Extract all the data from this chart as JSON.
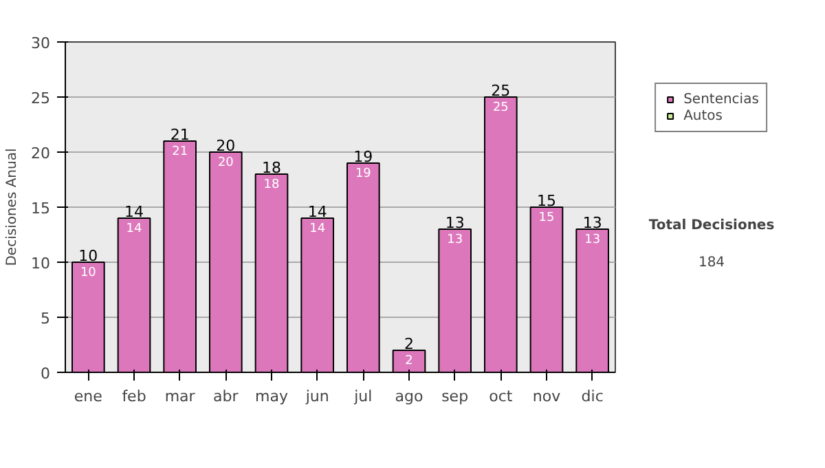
{
  "chart_data": {
    "type": "bar",
    "ylabel": "Decisiones Anual",
    "categories": [
      "ene",
      "feb",
      "mar",
      "abr",
      "may",
      "jun",
      "jul",
      "ago",
      "sep",
      "oct",
      "nov",
      "dic"
    ],
    "series": [
      {
        "name": "Sentencias",
        "color": "#dd77bb",
        "values": [
          10,
          14,
          21,
          20,
          18,
          14,
          19,
          2,
          13,
          25,
          15,
          13
        ],
        "value_labels": [
          "10",
          "14",
          "21",
          "20",
          "18",
          "14",
          "19",
          "2",
          "13",
          "25",
          "15",
          "13"
        ]
      },
      {
        "name": "Autos",
        "color": "#ccee99",
        "values": [
          null,
          null,
          null,
          null,
          null,
          null,
          null,
          null,
          null,
          null,
          null,
          null
        ]
      }
    ],
    "stacked": true,
    "totals": [
      "10",
      "14",
      "21",
      "20",
      "18",
      "14",
      "19",
      "2",
      "13",
      "25",
      "15",
      "13"
    ],
    "ylim": [
      0,
      30
    ],
    "yticks": [
      0,
      5,
      10,
      15,
      20,
      25,
      30
    ],
    "grid": "y",
    "legend": "right",
    "annotations": [
      "Total Decisiones",
      "184"
    ]
  }
}
